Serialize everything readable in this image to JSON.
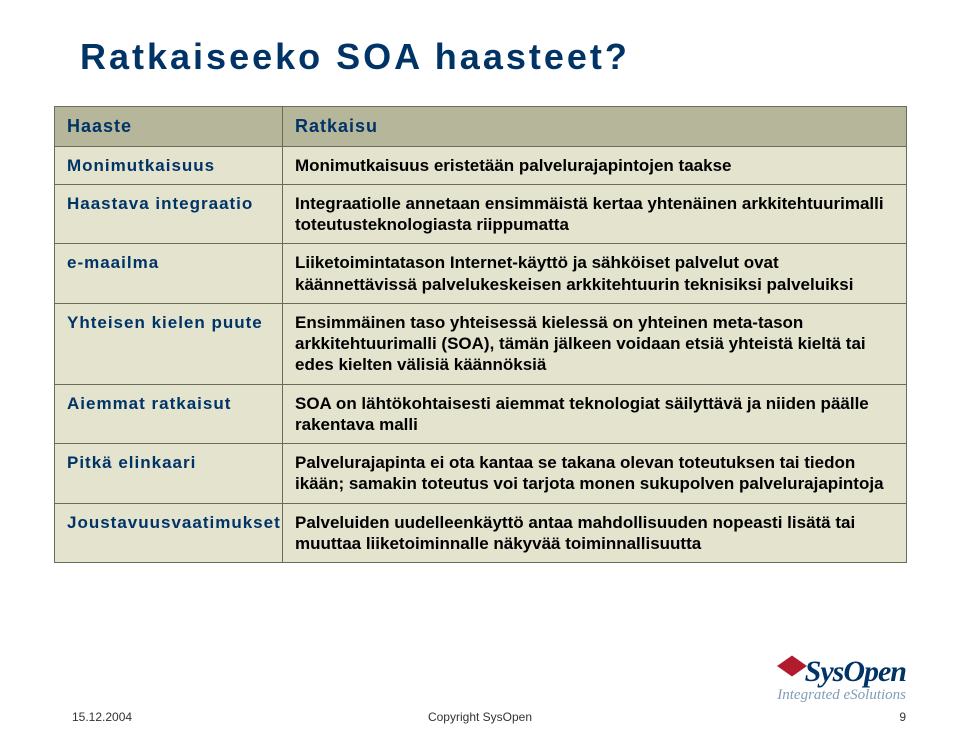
{
  "title": "Ratkaiseeko SOA haasteet?",
  "table": {
    "header_left": "Haaste",
    "header_right": "Ratkaisu",
    "rows": [
      {
        "l": "Monimutkaisuus",
        "r": "Monimutkaisuus eristetään palvelurajapintojen taakse"
      },
      {
        "l": "Haastava integraatio",
        "r": "Integraatiolle annetaan ensimmäistä kertaa yhtenäinen arkkitehtuurimalli toteutusteknologiasta riippumatta"
      },
      {
        "l": "e-maailma",
        "r": "Liiketoimintatason Internet-käyttö ja sähköiset palvelut ovat käännettävissä palvelukeskeisen arkkitehtuurin teknisiksi palveluiksi"
      },
      {
        "l": "Yhteisen kielen puute",
        "r": "Ensimmäinen taso yhteisessä kielessä on yhteinen meta-tason arkkitehtuurimalli (SOA), tämän jälkeen voidaan etsiä yhteistä kieltä tai edes kielten välisiä käännöksiä"
      },
      {
        "l": "Aiemmat ratkaisut",
        "r": "SOA on lähtökohtaisesti aiemmat teknologiat säilyttävä ja niiden päälle rakentava malli"
      },
      {
        "l": "Pitkä elinkaari",
        "r": "Palvelurajapinta ei ota kantaa se takana olevan toteutuksen tai tiedon ikään; samakin toteutus voi tarjota monen sukupolven palvelurajapintoja"
      },
      {
        "l": "Joustavuusvaatimukset",
        "r": "Palveluiden uudelleenkäyttö antaa mahdollisuuden nopeasti lisätä tai muuttaa liiketoiminnalle näkyvää toiminnallisuutta"
      }
    ]
  },
  "footer": {
    "date": "15.12.2004",
    "copyright": "Copyright SysOpen",
    "page": "9"
  },
  "logo": {
    "brand": "SysOpen",
    "tagline": "Integrated eSolutions"
  },
  "colors": {
    "title": "#003366",
    "header_bg": "#b6b69b",
    "cell_bg": "#e3e3ce",
    "border": "#6b6b5a",
    "logo_cube": "#b01c2e",
    "tagline": "#7F9CB8"
  }
}
